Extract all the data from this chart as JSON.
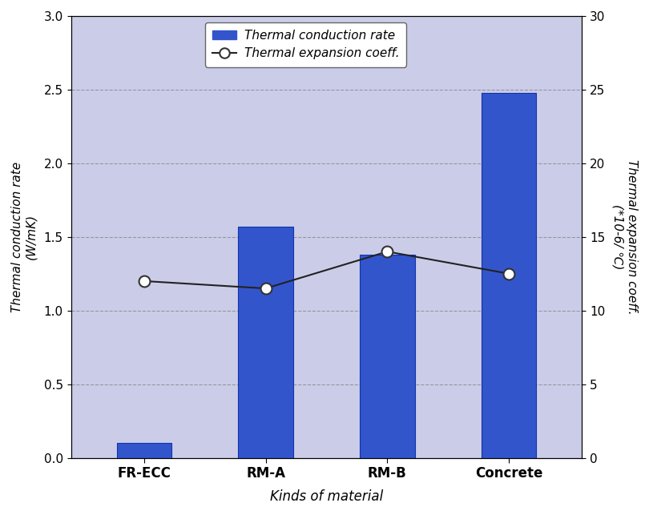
{
  "categories": [
    "FR-ECC",
    "RM-A",
    "RM-B",
    "Concrete"
  ],
  "bar_values": [
    0.1,
    1.57,
    1.38,
    2.48
  ],
  "line_values": [
    12.0,
    11.5,
    14.0,
    12.5
  ],
  "bar_color": "#3355CC",
  "bar_edge_color": "#1133AA",
  "line_color": "#222222",
  "marker_face_color": "white",
  "marker_edge_color": "#333333",
  "plot_bg_color": "#CBCDE8",
  "fig_bg_color": "#FFFFFF",
  "left_ylim": [
    0,
    3.0
  ],
  "right_ylim": [
    0,
    30
  ],
  "left_yticks": [
    0.0,
    0.5,
    1.0,
    1.5,
    2.0,
    2.5,
    3.0
  ],
  "right_yticks": [
    0,
    5,
    10,
    15,
    20,
    25,
    30
  ],
  "left_ylabel_line1": "Thermal conduction rate",
  "left_ylabel_line2": "(W/mK)",
  "right_ylabel_line1": "Thermal expansion coeff.",
  "right_ylabel_line2": "(*10-6/ ℃)",
  "xlabel": "Kinds of material",
  "legend_label_bar": "Thermal conduction rate",
  "legend_label_line": "Thermal expansion coeff.",
  "axis_label_fontsize": 11,
  "tick_label_fontsize": 11,
  "legend_fontsize": 11,
  "xlabel_fontsize": 12,
  "xtick_fontsize": 12,
  "bar_width": 0.45
}
